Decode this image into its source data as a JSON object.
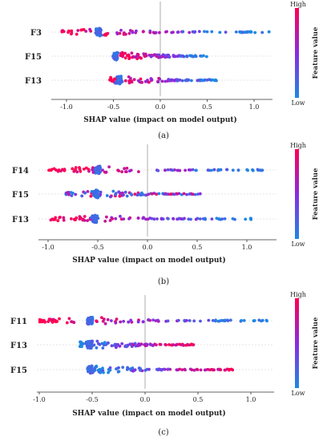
{
  "colors": {
    "high": "#ff0052",
    "low": "#1e88e5",
    "zero_line": "#999999",
    "grid": "#cccccc"
  },
  "chart_data": [
    {
      "type": "scatter",
      "subtype": "shap-beeswarm",
      "caption": "(a)",
      "xlabel": "SHAP value (impact on model output)",
      "xticks": [
        "-1.0",
        "-0.5",
        "0.0",
        "0.5",
        "1.0"
      ],
      "xlim": [
        -1.1,
        1.2
      ],
      "features": [
        "F3",
        "F15",
        "F13"
      ],
      "colorbar": {
        "high": "High",
        "low": "Low",
        "title": "Feature value"
      },
      "series": [
        {
          "feature": "F3",
          "cluster": -0.66,
          "range": [
            -1.05,
            1.17
          ],
          "high_side": "left"
        },
        {
          "feature": "F15",
          "cluster": -0.48,
          "range": [
            -0.48,
            0.5
          ],
          "high_side": "left"
        },
        {
          "feature": "F13",
          "cluster": -0.44,
          "range": [
            -0.55,
            0.65
          ],
          "high_side": "left"
        }
      ]
    },
    {
      "type": "scatter",
      "subtype": "shap-beeswarm",
      "caption": "(b)",
      "xlabel": "SHAP value (impact on model output)",
      "xticks": [
        "-1.0",
        "-0.5",
        "0.0",
        "0.5",
        "1.0"
      ],
      "xlim": [
        -1.1,
        1.3
      ],
      "features": [
        "F14",
        "F15",
        "F13"
      ],
      "colorbar": {
        "high": "High",
        "low": "Low",
        "title": "Feature value"
      },
      "series": [
        {
          "feature": "F14",
          "cluster": -0.5,
          "range": [
            -1.0,
            1.2
          ],
          "high_side": "left"
        },
        {
          "feature": "F15",
          "cluster": -0.52,
          "range": [
            -0.82,
            0.55
          ],
          "high_side": "mixed"
        },
        {
          "feature": "F13",
          "cluster": -0.53,
          "range": [
            -0.98,
            1.05
          ],
          "high_side": "left"
        }
      ]
    },
    {
      "type": "scatter",
      "subtype": "shap-beeswarm",
      "caption": "(c)",
      "xlabel": "SHAP value (impact on model output)",
      "xticks": [
        "-1.0",
        "-0.5",
        "0.0",
        "0.5",
        "1.0"
      ],
      "xlim": [
        -1.1,
        1.25
      ],
      "features": [
        "F11",
        "F13",
        "F15"
      ],
      "colorbar": {
        "high": "High",
        "low": "Low",
        "title": "Feature value"
      },
      "series": [
        {
          "feature": "F11",
          "cluster": -0.52,
          "range": [
            -1.0,
            1.2
          ],
          "high_side": "left"
        },
        {
          "feature": "F13",
          "cluster": -0.52,
          "range": [
            -0.62,
            0.5
          ],
          "high_side": "right"
        },
        {
          "feature": "F15",
          "cluster": -0.52,
          "range": [
            -0.52,
            0.85
          ],
          "high_side": "right"
        }
      ]
    }
  ]
}
